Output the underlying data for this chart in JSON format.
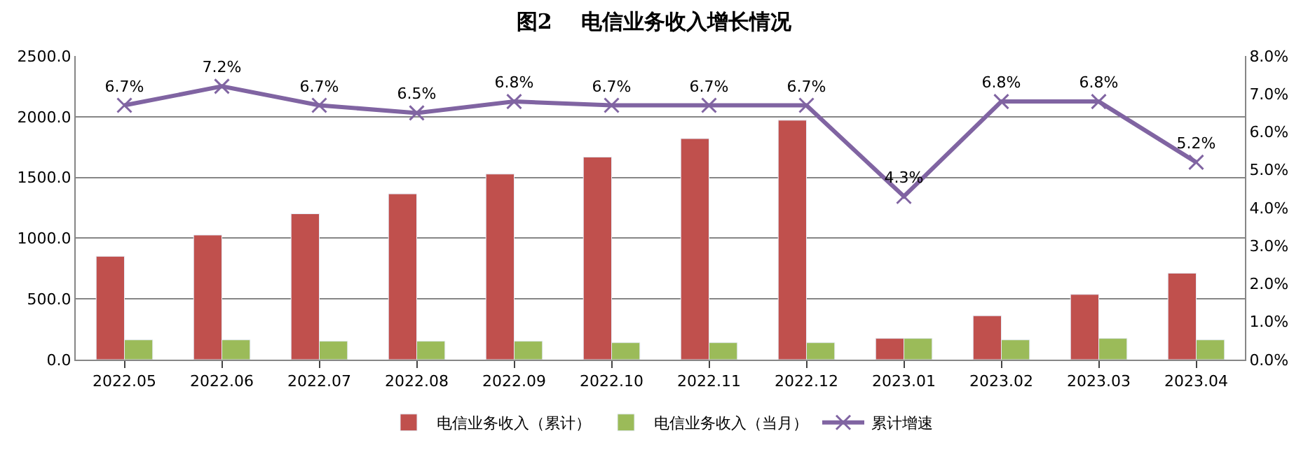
{
  "chart_data": {
    "type": "bar",
    "title": "图2    电信业务收入增长情况",
    "categories": [
      "2022.05",
      "2022.06",
      "2022.07",
      "2022.08",
      "2022.09",
      "2022.10",
      "2022.11",
      "2022.12",
      "2023.01",
      "2023.02",
      "2023.03",
      "2023.04"
    ],
    "series": [
      {
        "name": "电信业务收入（累计）",
        "color": "#c0504d",
        "values": [
          851,
          1026,
          1201,
          1365,
          1528,
          1668,
          1820,
          1971,
          175,
          362,
          537,
          712
        ]
      },
      {
        "name": "电信业务收入（当月）",
        "color": "#9bbb59",
        "values": [
          163,
          163,
          152,
          152,
          152,
          140,
          140,
          140,
          175,
          163,
          175,
          163
        ]
      },
      {
        "name": "累计增速",
        "type": "line",
        "axis": "y2",
        "color": "#8064a2",
        "marker": "cross",
        "data_labels": true,
        "value_labels": [
          "6.7%",
          "7.2%",
          "6.7%",
          "6.5%",
          "6.8%",
          "6.7%",
          "6.7%",
          "6.7%",
          "4.3%",
          "6.8%",
          "6.8%",
          "5.2%"
        ],
        "values": [
          6.7,
          7.2,
          6.7,
          6.5,
          6.8,
          6.7,
          6.7,
          6.7,
          4.3,
          6.8,
          6.8,
          5.2
        ]
      }
    ],
    "ylim": [
      0,
      2500
    ],
    "yticks": [
      {
        "value": 0,
        "label": "0.0"
      },
      {
        "value": 500,
        "label": "500.0"
      },
      {
        "value": 1000,
        "label": "1000.0"
      },
      {
        "value": 1500,
        "label": "1500.0"
      },
      {
        "value": 2000,
        "label": "2000.0"
      },
      {
        "value": 2500,
        "label": "2500.0"
      }
    ],
    "y2lim": [
      0,
      8
    ],
    "y2ticks": [
      {
        "value": 0,
        "label": "0.0%"
      },
      {
        "value": 1,
        "label": "1.0%"
      },
      {
        "value": 2,
        "label": "2.0%"
      },
      {
        "value": 3,
        "label": "3.0%"
      },
      {
        "value": 4,
        "label": "4.0%"
      },
      {
        "value": 5,
        "label": "5.0%"
      },
      {
        "value": 6,
        "label": "6.0%"
      },
      {
        "value": 7,
        "label": "7.0%"
      },
      {
        "value": 8,
        "label": "8.0%"
      }
    ],
    "grid": "y",
    "legend": "bottom"
  }
}
